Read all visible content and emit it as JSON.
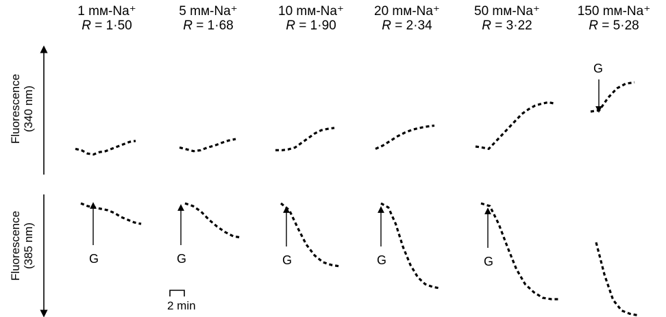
{
  "figure": {
    "panels": [
      {
        "conc": "1 mм-Na⁺",
        "r_label": "R",
        "r_value": "= 1·50"
      },
      {
        "conc": "5 mм-Na⁺",
        "r_label": "R",
        "r_value": "= 1·68"
      },
      {
        "conc": "10 mм-Na⁺",
        "r_label": "R",
        "r_value": "= 1·90"
      },
      {
        "conc": "20 mм-Na⁺",
        "r_label": "R",
        "r_value": "= 2·34"
      },
      {
        "conc": "50 mм-Na⁺",
        "r_label": "R",
        "r_value": "= 3·22"
      },
      {
        "conc": "150 mм-Na⁺",
        "r_label": "R",
        "r_value": "= 5·28"
      }
    ],
    "y_label_top_1": "Fluorescence",
    "y_label_top_2": "(340 nm)",
    "y_label_bottom_1": "Fluorescence",
    "y_label_bottom_2": "(385 nm)",
    "marker": "G",
    "scale_bar": "2 min"
  },
  "chart_data": {
    "type": "line",
    "x_unit": "min",
    "series_340": [
      [
        0.45,
        0.42,
        0.35,
        0.33,
        0.38,
        0.4,
        0.45,
        0.5,
        0.55,
        0.6,
        0.62
      ],
      [
        0.48,
        0.44,
        0.4,
        0.42,
        0.48,
        0.52,
        0.58,
        0.63,
        0.66
      ],
      [
        0.42,
        0.42,
        0.44,
        0.48,
        0.58,
        0.68,
        0.78,
        0.85,
        0.88,
        0.9
      ],
      [
        0.45,
        0.52,
        0.62,
        0.72,
        0.8,
        0.86,
        0.9,
        0.93,
        0.95
      ],
      [
        0.5,
        0.48,
        0.45,
        0.6,
        0.75,
        0.9,
        1.05,
        1.2,
        1.3,
        1.38,
        1.42,
        1.45,
        1.42
      ],
      [
        1.25,
        1.28,
        1.55,
        1.75,
        1.85,
        1.88
      ]
    ],
    "series_385": [
      [
        1.0,
        0.98,
        0.97,
        0.96,
        0.95,
        0.93,
        0.9,
        0.88,
        0.86,
        0.85
      ],
      [
        1.0,
        0.98,
        0.94,
        0.88,
        0.83,
        0.79,
        0.76,
        0.75
      ],
      [
        1.0,
        0.95,
        0.82,
        0.7,
        0.62,
        0.57,
        0.55,
        0.54
      ],
      [
        1.0,
        0.97,
        0.85,
        0.68,
        0.55,
        0.46,
        0.41,
        0.39,
        0.38
      ],
      [
        1.0,
        0.98,
        0.85,
        0.68,
        0.52,
        0.41,
        0.35,
        0.31,
        0.3,
        0.3
      ],
      [
        0.95,
        0.55,
        0.25,
        0.12,
        0.08,
        0.06
      ]
    ],
    "glucose_marker": "G"
  }
}
